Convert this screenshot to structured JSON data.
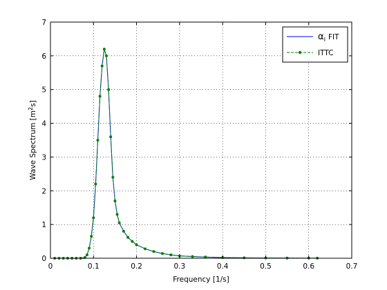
{
  "chart_data": {
    "type": "line",
    "xlabel": "Frequency [1/s]",
    "ylabel_prefix": "Wave Spectrum [m",
    "ylabel_sup": "2",
    "ylabel_suffix": "s]",
    "xlim": [
      0,
      0.7
    ],
    "ylim": [
      0,
      7
    ],
    "x_ticks": [
      "0",
      "0.1",
      "0.2",
      "0.3",
      "0.4",
      "0.5",
      "0.6",
      "0.7"
    ],
    "y_ticks": [
      "0",
      "1",
      "2",
      "3",
      "4",
      "5",
      "6",
      "7"
    ],
    "grid": true,
    "legend_position": "top-right",
    "series": [
      {
        "name": "FIT",
        "name_greek": "α",
        "name_sub": "I",
        "color": "#0000ff",
        "marker": "none",
        "x": [
          0.01,
          0.02,
          0.03,
          0.04,
          0.05,
          0.06,
          0.07,
          0.08,
          0.085,
          0.09,
          0.095,
          0.1,
          0.105,
          0.11,
          0.115,
          0.12,
          0.125,
          0.13,
          0.135,
          0.14,
          0.145,
          0.15,
          0.155,
          0.16,
          0.17,
          0.18,
          0.19,
          0.2,
          0.22,
          0.24,
          0.26,
          0.28,
          0.3,
          0.33,
          0.36,
          0.4,
          0.45,
          0.5,
          0.55,
          0.6,
          0.62
        ],
        "y": [
          0,
          0,
          0,
          0,
          0,
          0,
          0,
          0.02,
          0.1,
          0.3,
          0.65,
          1.2,
          2.2,
          3.5,
          4.8,
          5.7,
          6.2,
          6.0,
          5.0,
          3.6,
          2.4,
          1.7,
          1.3,
          1.05,
          0.8,
          0.62,
          0.5,
          0.4,
          0.28,
          0.2,
          0.14,
          0.1,
          0.07,
          0.05,
          0.035,
          0.02,
          0.012,
          0.008,
          0.005,
          0.003,
          0.002
        ]
      },
      {
        "name": "ITTC",
        "color": "#008000",
        "marker": "dot",
        "x": [
          0.01,
          0.02,
          0.03,
          0.04,
          0.05,
          0.06,
          0.07,
          0.08,
          0.085,
          0.09,
          0.095,
          0.1,
          0.105,
          0.11,
          0.115,
          0.12,
          0.125,
          0.13,
          0.135,
          0.14,
          0.145,
          0.15,
          0.155,
          0.16,
          0.17,
          0.18,
          0.19,
          0.2,
          0.22,
          0.24,
          0.26,
          0.28,
          0.3,
          0.33,
          0.36,
          0.4,
          0.45,
          0.5,
          0.55,
          0.6,
          0.62
        ],
        "y": [
          0,
          0,
          0,
          0,
          0,
          0,
          0,
          0.02,
          0.1,
          0.3,
          0.65,
          1.2,
          2.2,
          3.5,
          4.8,
          5.7,
          6.2,
          6.0,
          5.0,
          3.6,
          2.4,
          1.7,
          1.3,
          1.05,
          0.8,
          0.62,
          0.5,
          0.4,
          0.28,
          0.2,
          0.14,
          0.1,
          0.07,
          0.05,
          0.035,
          0.02,
          0.012,
          0.008,
          0.005,
          0.003,
          0.002
        ]
      }
    ]
  }
}
